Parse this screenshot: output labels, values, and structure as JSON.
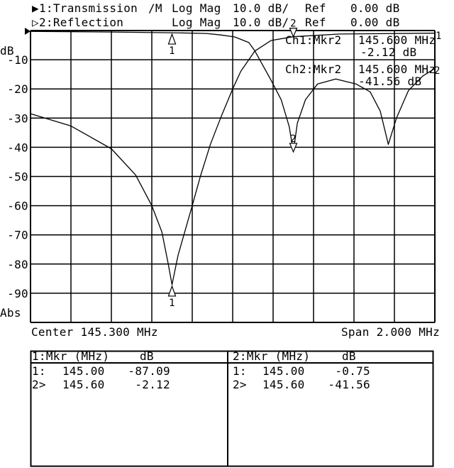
{
  "header": {
    "trace1": {
      "indicator": "▶",
      "name": "1:Transmission",
      "mode": "/M",
      "format": "Log Mag",
      "scale": "10.0 dB/",
      "ref_label": "Ref",
      "ref_value": "0.00 dB"
    },
    "trace2": {
      "indicator": "▷",
      "name": "2:Reflection",
      "format": "Log Mag",
      "scale": "10.0 dB/",
      "ref_label": "Ref",
      "ref_value": "0.00 dB"
    }
  },
  "axis": {
    "unit_label": "dB",
    "bottom_label": "Abs",
    "center": "Center 145.300 MHz",
    "span": "Span 2.000 MHz"
  },
  "marker_readout": {
    "ch1": {
      "label": "Ch1:Mkr2",
      "freq": "145.600 MHz",
      "value": "-2.12 dB"
    },
    "ch2": {
      "label": "Ch2:Mkr2",
      "freq": "145.600 MHz",
      "value": "-41.56 dB"
    }
  },
  "chart_data": {
    "type": "line",
    "xlim": [
      144.3,
      146.3
    ],
    "ylim": [
      -100,
      0
    ],
    "y_ticks": [
      "-10",
      "-20",
      "-30",
      "-40",
      "-50",
      "-60",
      "-70",
      "-80",
      "-90"
    ],
    "y_tick_values": [
      -10,
      -20,
      -30,
      -40,
      -50,
      -60,
      -70,
      -80,
      -90
    ],
    "grid": true,
    "series": [
      {
        "name": "1",
        "color": "#000000",
        "x": [
          144.3,
          144.5,
          144.7,
          144.82,
          144.9,
          144.95,
          144.98,
          145.0,
          145.03,
          145.1,
          145.14,
          145.19,
          145.24,
          145.3,
          145.34,
          145.41,
          145.49,
          145.6,
          145.83,
          146.3
        ],
        "y": [
          -28.5,
          -32.7,
          -40.5,
          -49.5,
          -60,
          -69,
          -79.5,
          -87.09,
          -77,
          -60,
          -50,
          -39,
          -30,
          -20,
          -14,
          -7,
          -3.4,
          -2.12,
          -1.2,
          -0.9
        ]
      },
      {
        "name": "2",
        "color": "#000000",
        "x": [
          144.3,
          144.7,
          145.0,
          145.17,
          145.24,
          145.31,
          145.38,
          145.41,
          145.49,
          145.54,
          145.58,
          145.6,
          145.62,
          145.66,
          145.72,
          145.81,
          145.91,
          145.98,
          146.03,
          146.07,
          146.11,
          146.17,
          146.24,
          146.3
        ],
        "y": [
          -0.3,
          -0.5,
          -0.75,
          -1.0,
          -1.5,
          -2.2,
          -4.1,
          -7,
          -17,
          -23.7,
          -33,
          -41.56,
          -31.7,
          -23.7,
          -18.3,
          -16.6,
          -18.3,
          -21,
          -27.6,
          -39,
          -30,
          -20.5,
          -15.6,
          -13
        ]
      }
    ],
    "markers": [
      {
        "trace": 1,
        "id": "1",
        "freq": 145.0,
        "value": -87.09,
        "active": false
      },
      {
        "trace": 1,
        "id": "2",
        "freq": 145.6,
        "value": -2.12,
        "active": true
      },
      {
        "trace": 2,
        "id": "1",
        "freq": 145.0,
        "value": -0.75,
        "active": false
      },
      {
        "trace": 2,
        "id": "2",
        "freq": 145.6,
        "value": -41.56,
        "active": true
      }
    ]
  },
  "marker_table": {
    "ch1": {
      "header_mkr": "1:Mkr (MHz)",
      "header_db": "dB",
      "rows": [
        {
          "id": "1:",
          "freq": "145.00",
          "value": "-87.09"
        },
        {
          "id": "2>",
          "freq": "145.60",
          "value": "-2.12"
        }
      ]
    },
    "ch2": {
      "header_mkr": "2:Mkr (MHz)",
      "header_db": "dB",
      "rows": [
        {
          "id": "1:",
          "freq": "145.00",
          "value": "-0.75"
        },
        {
          "id": "2>",
          "freq": "145.60",
          "value": "-41.56"
        }
      ]
    }
  }
}
